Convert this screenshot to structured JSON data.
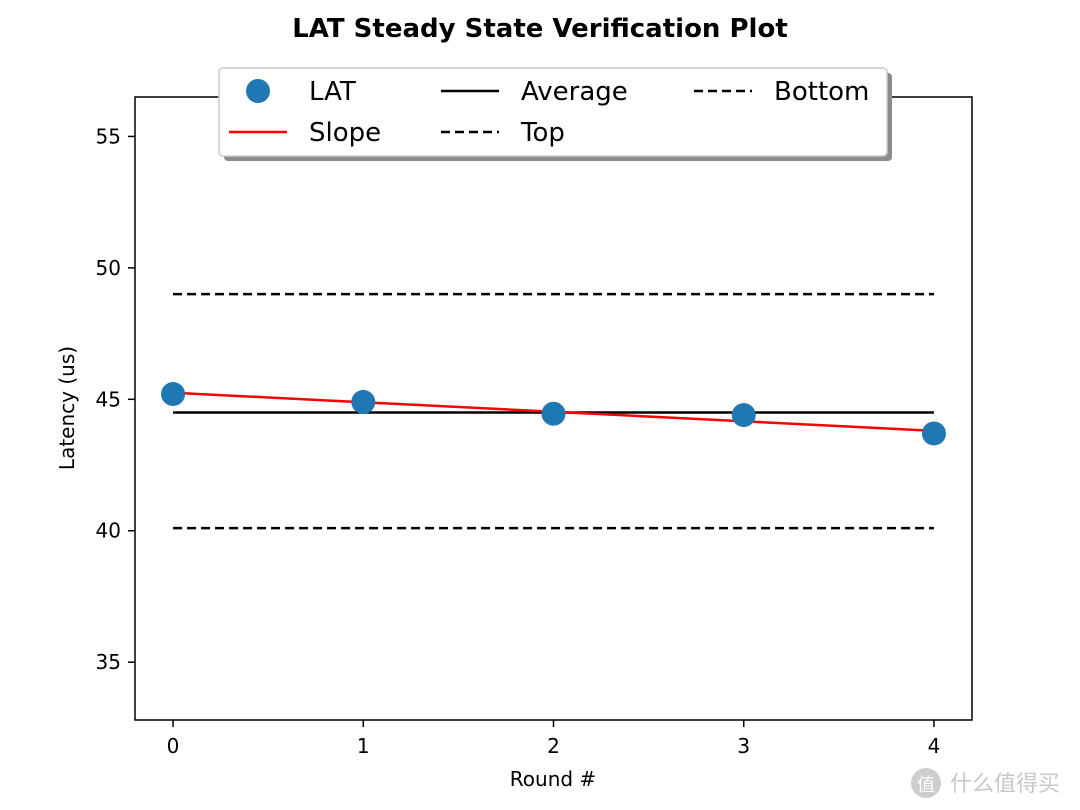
{
  "chart_data": {
    "type": "line",
    "title": "LAT Steady State Verification Plot",
    "xlabel": "Round #",
    "ylabel": "Latency (us)",
    "xlim": [
      -0.2,
      4.2
    ],
    "ylim": [
      32.8,
      56.5
    ],
    "xticks": [
      0,
      1,
      2,
      3,
      4
    ],
    "yticks": [
      35,
      40,
      45,
      50,
      55
    ],
    "grid": false,
    "legend_position": "top-center",
    "series": [
      {
        "name": "LAT",
        "kind": "scatter",
        "color": "#1f77b4",
        "x": [
          0,
          1,
          2,
          3,
          4
        ],
        "y": [
          45.2,
          44.9,
          44.45,
          44.4,
          43.7
        ]
      },
      {
        "name": "Slope",
        "kind": "line",
        "color": "#ff0000",
        "x": [
          0,
          4
        ],
        "y": [
          45.25,
          43.8
        ]
      },
      {
        "name": "Average",
        "kind": "line",
        "color": "#000000",
        "x": [
          0,
          4
        ],
        "y": [
          44.5,
          44.5
        ]
      },
      {
        "name": "Top",
        "kind": "dashed",
        "color": "#000000",
        "x": [
          0,
          4
        ],
        "y": [
          49.0,
          49.0
        ]
      },
      {
        "name": "Bottom",
        "kind": "dashed",
        "color": "#000000",
        "x": [
          0,
          4
        ],
        "y": [
          40.1,
          40.1
        ]
      }
    ]
  },
  "watermark": {
    "text": "什么值得买",
    "logo_char": "值"
  }
}
